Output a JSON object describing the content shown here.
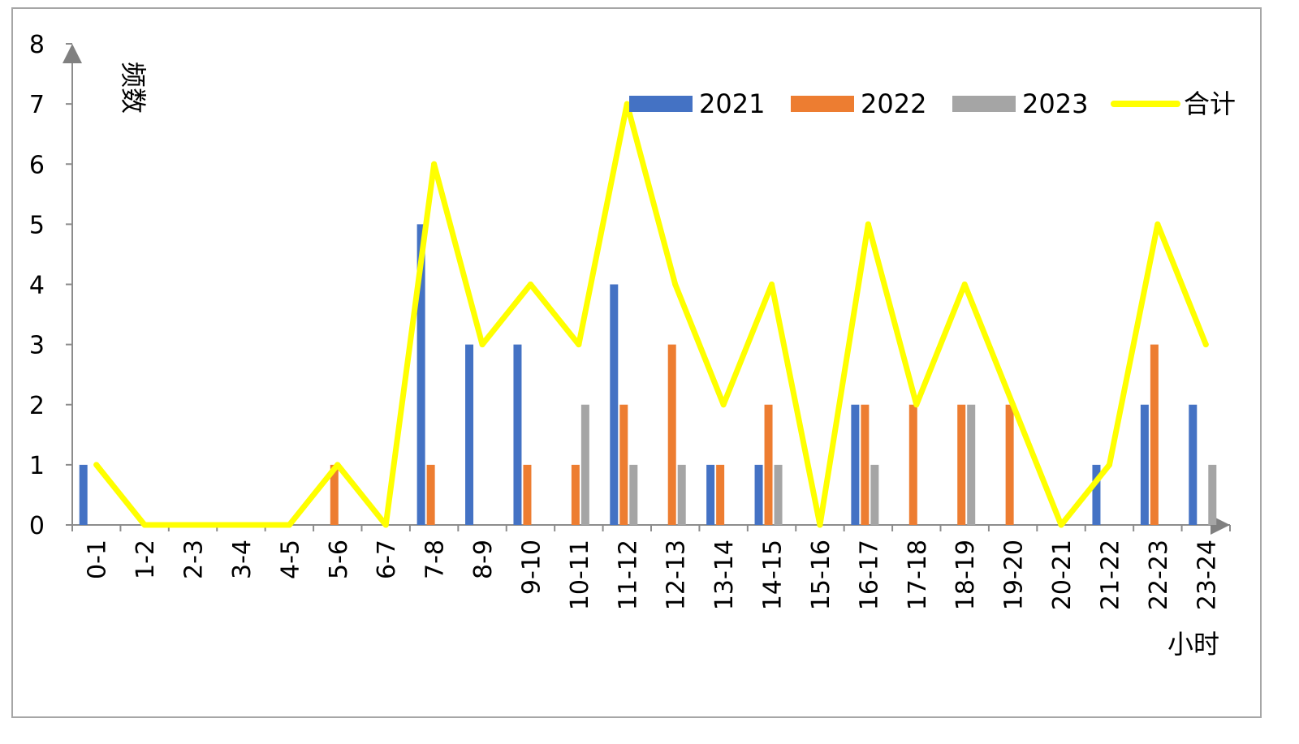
{
  "chart_data": {
    "type": "bar",
    "xlabel": "小时",
    "ylabel": "频数",
    "ylim": [
      0,
      8
    ],
    "yticks": [
      "0",
      "1",
      "2",
      "3",
      "4",
      "5",
      "6",
      "7",
      "8"
    ],
    "legend_position": "top-right",
    "categories": [
      "0-1",
      "1-2",
      "2-3",
      "3-4",
      "4-5",
      "5-6",
      "6-7",
      "7-8",
      "8-9",
      "9-10",
      "10-11",
      "11-12",
      "12-13",
      "13-14",
      "14-15",
      "15-16",
      "16-17",
      "17-18",
      "18-19",
      "19-20",
      "20-21",
      "21-22",
      "22-23",
      "23-24"
    ],
    "series": [
      {
        "name": "2021",
        "kind": "bar",
        "color": "#4472c4",
        "values": [
          1,
          0,
          0,
          0,
          0,
          0,
          0,
          5,
          3,
          3,
          0,
          4,
          0,
          1,
          1,
          0,
          2,
          0,
          0,
          0,
          0,
          1,
          2,
          2
        ]
      },
      {
        "name": "2022",
        "kind": "bar",
        "color": "#ed7d31",
        "values": [
          0,
          0,
          0,
          0,
          0,
          1,
          0,
          1,
          0,
          1,
          1,
          2,
          3,
          1,
          2,
          0,
          2,
          2,
          2,
          2,
          0,
          0,
          3,
          0
        ]
      },
      {
        "name": "2023",
        "kind": "bar",
        "color": "#a5a5a5",
        "values": [
          0,
          0,
          0,
          0,
          0,
          0,
          0,
          0,
          0,
          0,
          2,
          1,
          1,
          0,
          1,
          0,
          1,
          0,
          2,
          0,
          0,
          0,
          0,
          1
        ]
      },
      {
        "name": "合计",
        "kind": "line",
        "color": "#ffff00",
        "values": [
          1,
          0,
          0,
          0,
          0,
          1,
          0,
          6,
          3,
          4,
          3,
          7,
          4,
          2,
          4,
          0,
          5,
          2,
          4,
          2,
          0,
          1,
          5,
          3
        ]
      }
    ]
  }
}
